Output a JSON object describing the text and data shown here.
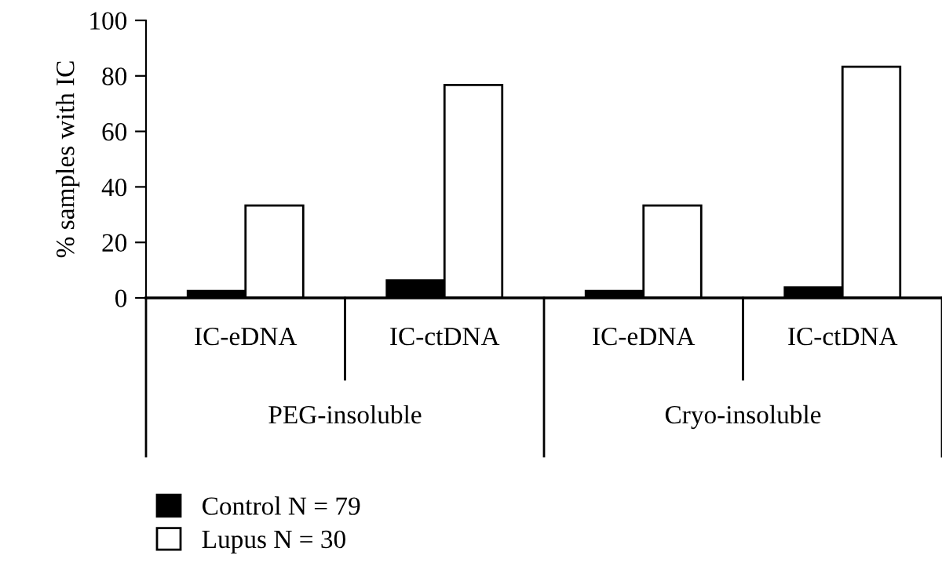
{
  "chart_data": {
    "type": "bar",
    "ylabel": "% samples with IC",
    "categories": [
      "IC-eDNA",
      "IC-ctDNA",
      "IC-eDNA",
      "IC-ctDNA"
    ],
    "series": [
      {
        "name": "Control N = 79",
        "color": "#000000",
        "values": [
          2.5,
          6.3,
          2.5,
          3.8
        ]
      },
      {
        "name": "Lupus N = 30",
        "color": "#ffffff",
        "values": [
          33.3,
          76.7,
          33.3,
          83.3
        ]
      }
    ],
    "annotations": [
      "PEG-insoluble",
      "Cryo-insoluble"
    ],
    "ylim": [
      0,
      100
    ],
    "yticks": [
      0,
      20,
      40,
      60,
      80,
      100
    ],
    "grid": false,
    "legend": "bottom left"
  }
}
